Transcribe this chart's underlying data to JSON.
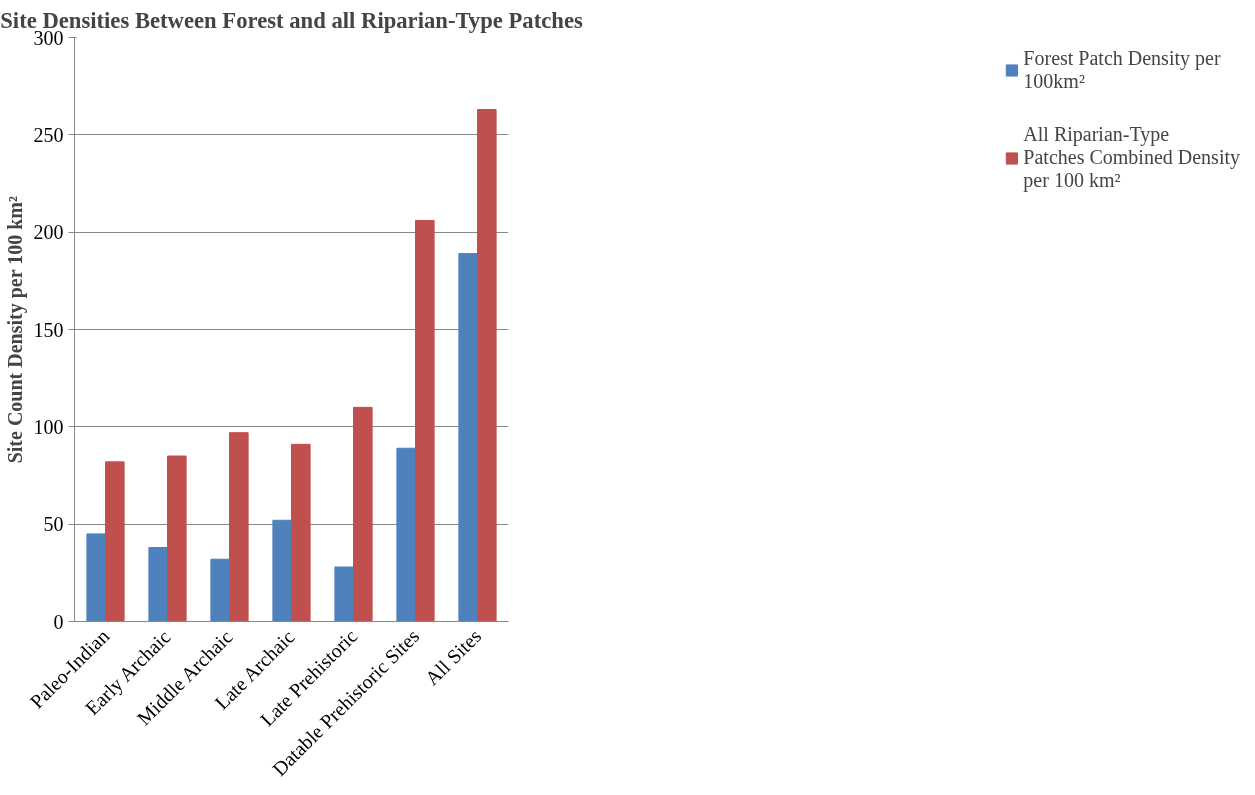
{
  "chart_data": {
    "type": "bar",
    "title": "Site Densities Between Forest and all Riparian-Type Patches",
    "ylabel": "Site Count Density per 100 km²",
    "categories": [
      "Paleo-Indian",
      "Early Archaic",
      "Middle Archaic",
      "Late Archaic",
      "Late Prehistoric",
      "Datable Prehistoric Sites",
      "All Sites"
    ],
    "series": [
      {
        "name": "Forest Patch Density per 100km²",
        "color": "#4f81bd",
        "values": [
          45,
          38,
          32,
          52,
          28,
          89,
          189
        ]
      },
      {
        "name": "All Riparian-Type Patches Combined Density per 100 km²",
        "color": "#c0504d",
        "values": [
          82,
          85,
          97,
          91,
          110,
          206,
          263
        ]
      }
    ],
    "ylim": [
      0,
      300
    ],
    "yticks": [
      0,
      50,
      100,
      150,
      200,
      250,
      300
    ],
    "grid": "y",
    "legend": "right"
  }
}
